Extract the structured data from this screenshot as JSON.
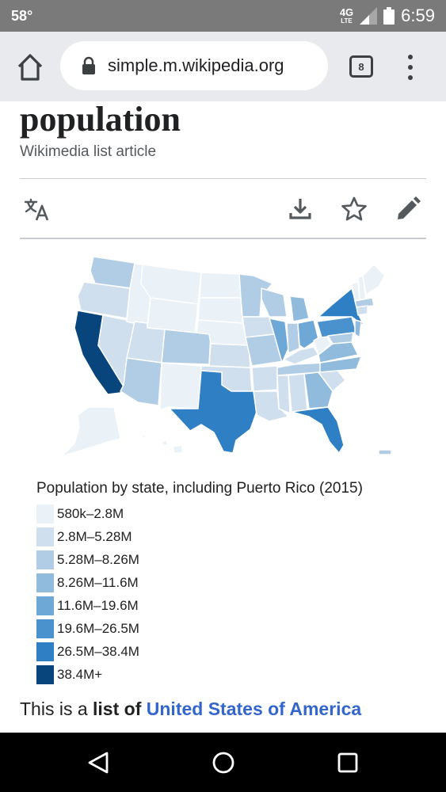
{
  "status_bar": {
    "temperature": "58°",
    "network": "4G",
    "network_sub": "LTE",
    "time": "6:59"
  },
  "browser": {
    "url": "simple.m.wikipedia.org",
    "tab_count": "8",
    "icons": [
      "home-icon",
      "lock-icon",
      "tabs-icon",
      "overflow-menu-icon"
    ]
  },
  "article": {
    "title": "population",
    "subtitle": "Wikimedia list article",
    "tool_icons": [
      "translate-icon",
      "download-icon",
      "star-icon",
      "edit-icon"
    ],
    "intro_prefix": "This is a ",
    "intro_bold": "list of",
    "intro_space": " ",
    "intro_link": "United States of America"
  },
  "map": {
    "legend_title": "Population by state, including Puerto Rico (2015)",
    "legend": [
      {
        "label": "580k–2.8M",
        "color": "#eaf1f7"
      },
      {
        "label": "2.8M–5.28M",
        "color": "#cfdfee"
      },
      {
        "label": "5.28M–8.26M",
        "color": "#b0cde5"
      },
      {
        "label": "8.26M–11.6M",
        "color": "#91bbdc"
      },
      {
        "label": "11.6M–19.6M",
        "color": "#6ea8d6"
      },
      {
        "label": "19.6M–26.5M",
        "color": "#4a92ce"
      },
      {
        "label": "26.5M–38.4M",
        "color": "#2e7fc4"
      },
      {
        "label": "38.4M+",
        "color": "#08457c"
      }
    ]
  },
  "nav_bar": {
    "icons": [
      "back-icon",
      "home-circle-icon",
      "recents-icon"
    ]
  }
}
